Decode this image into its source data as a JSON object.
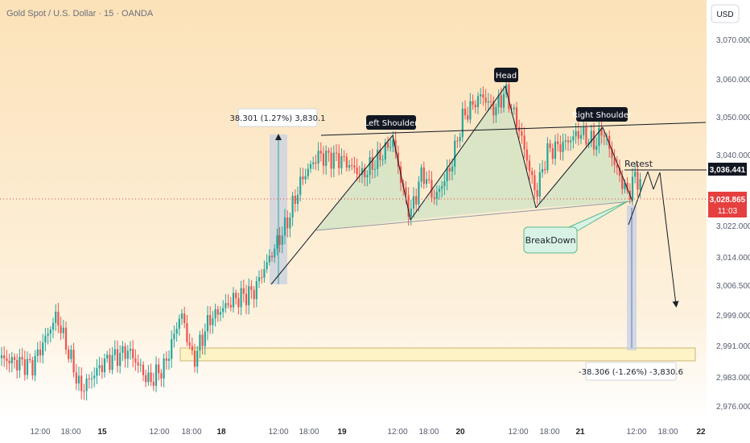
{
  "header": {
    "title": "Gold Spot / U.S. Dollar · 15 · OANDA",
    "currency": "USD"
  },
  "colors": {
    "background_top": "#fce2b8",
    "background_bottom": "#ffffff",
    "up_candle": "#26a69a",
    "down_candle": "#ef5350",
    "pattern_fill": "#cfe3c4",
    "support_zone": "#fdf3c4",
    "breakdown_box": "#d9f2e6",
    "measure_fill": "#c5cfe3",
    "price_badge_current": "#e5403f",
    "price_badge_level": "#131722"
  },
  "annotations": {
    "left_shoulder": "Left Shoulder",
    "head": "Head",
    "right_shoulder": "Right Shoulder",
    "retest": "Retest",
    "breakdown": "BreakDown",
    "measure_up": "38.301 (1.27%) 3,830.1",
    "measure_down": "-38.306 (-1.26%) -3,830.6"
  },
  "price_badges": {
    "level": "3,036.441",
    "current": "3,028.865",
    "countdown": "11:03"
  },
  "chart_data": {
    "type": "candlestick",
    "symbol": "XAUUSD",
    "timeframe": "15",
    "yaxis": {
      "ticks": [
        3070,
        3060,
        3050,
        3040,
        3022,
        3014,
        3006.5,
        2999,
        2991,
        2983,
        2976
      ],
      "tick_labels": [
        "3,070.000",
        "3,060.000",
        "3,050.000",
        "3,040.000",
        "3,022.000",
        "3,014.000",
        "3,006.500",
        "2,999.000",
        "2,991.000",
        "2,983.000",
        "2,976.000"
      ]
    },
    "xaxis": {
      "tick_labels": [
        "12:00",
        "18:00",
        "15",
        "12:00",
        "18:00",
        "18",
        "12:00",
        "18:00",
        "19",
        "12:00",
        "18:00",
        "20",
        "12:00",
        "18:00",
        "21",
        "12:00",
        "18:00",
        "22"
      ],
      "bold_labels": [
        "15",
        "18",
        "19",
        "20",
        "21",
        "22"
      ]
    },
    "pattern": "head and shoulders",
    "neckline_level": 3036.441,
    "current_price": 3028.865,
    "support_zone": [
      2988,
      2992
    ],
    "measured_move_up": "38.301 (1.27%) 3,830.1",
    "measured_move_down": "-38.306 (-1.26%) -3,830.6",
    "key_points": [
      {
        "label": "Left Shoulder",
        "time": "19 12:00",
        "price": 3046.5
      },
      {
        "label": "Head",
        "time": "20 12:00",
        "price": 3058
      },
      {
        "label": "Right Shoulder",
        "time": "21 06:00",
        "price": 3048
      },
      {
        "label": "Retest",
        "time": "21 12:00",
        "price": 3036.4
      }
    ]
  }
}
